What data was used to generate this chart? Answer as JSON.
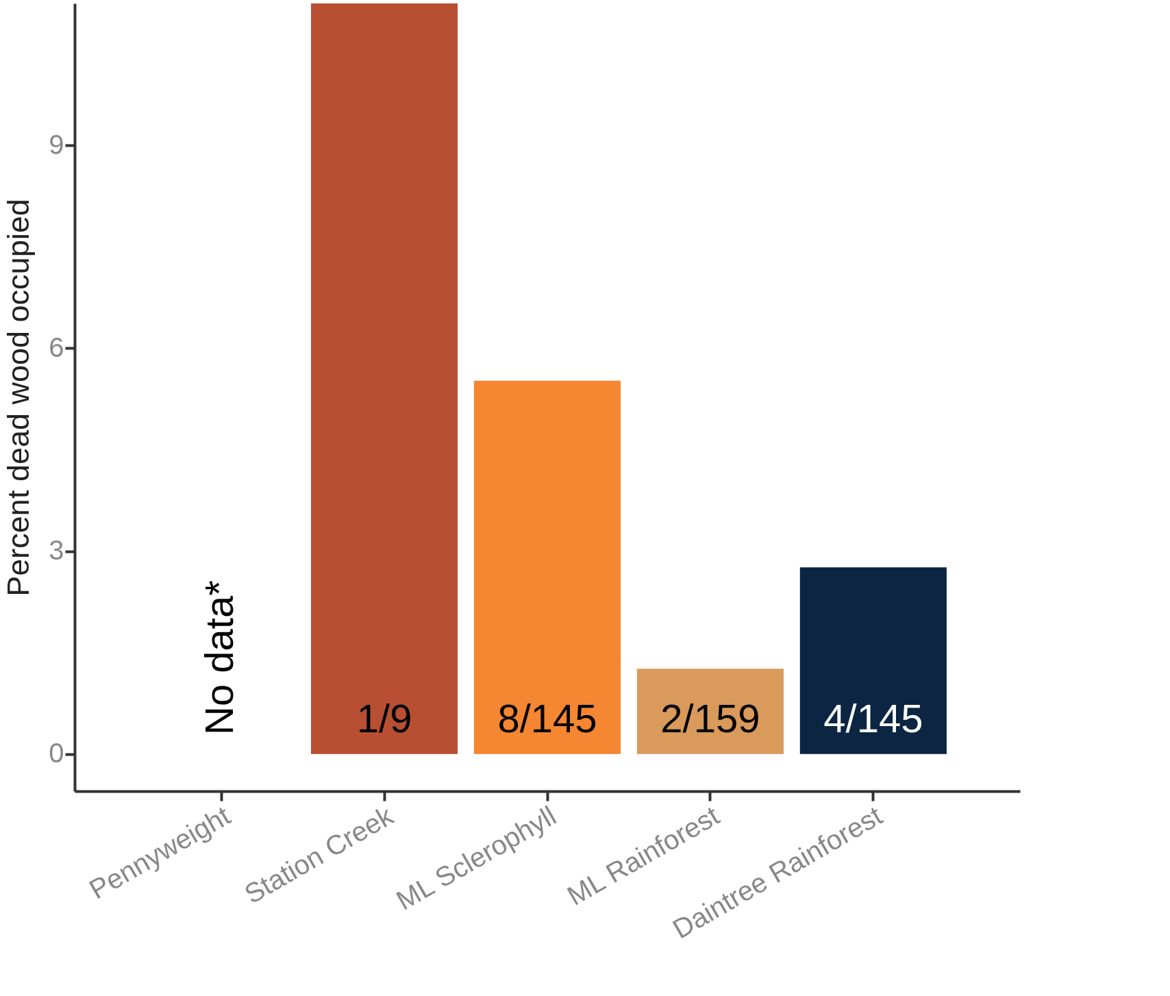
{
  "chart_data": {
    "type": "bar",
    "categories": [
      "Pennyweight",
      "Station Creek",
      "ML Sclerophyll",
      "ML Rainforest",
      "Daintree Rainforest"
    ],
    "values": [
      null,
      11.1,
      5.52,
      1.26,
      2.76
    ],
    "colors": [
      null,
      "#b84f33",
      "#f58632",
      "#d99a5c",
      "#0b2543"
    ],
    "value_labels": [
      null,
      "1/9",
      "8/145",
      "2/159",
      "4/145"
    ],
    "ylabel": "Percent dead wood occupied",
    "ylim": [
      -0.55,
      11.1
    ],
    "yticks": [
      0,
      3,
      6,
      9
    ],
    "annotations": [
      "No data*"
    ],
    "grid": false
  }
}
